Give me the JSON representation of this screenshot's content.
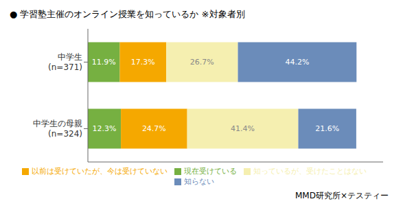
{
  "chart_data": {
    "type": "bar",
    "orientation": "horizontal",
    "stacked": true,
    "title": "● 学習塾主催のオンライン授業を知っているか ※対象者別",
    "categories": [
      "中学生\n(n=371)",
      "中学生の母親\n(n=324)"
    ],
    "series": [
      {
        "name": "現在受けている",
        "color": "#76b041",
        "values": [
          11.9,
          12.3
        ],
        "value_labels": [
          "11.9%",
          "12.3%"
        ]
      },
      {
        "name": "以前は受けていたが、今は受けていない",
        "color": "#f5a800",
        "values": [
          17.3,
          24.7
        ],
        "value_labels": [
          "17.3%",
          "24.7%"
        ]
      },
      {
        "name": "知っているが、受けたことはない",
        "color": "#f5efb0",
        "values": [
          26.7,
          41.4
        ],
        "value_labels": [
          "26.7%",
          "41.4%"
        ]
      },
      {
        "name": "知らない",
        "color": "#6b8cba",
        "values": [
          44.2,
          21.6
        ],
        "value_labels": [
          "44.2%",
          "21.6%"
        ]
      }
    ],
    "xlim": [
      0,
      110
    ],
    "data_labels": true,
    "tick_labels": "y",
    "grid": false,
    "legend": "bottom",
    "annotations": [
      "MMD研究所×テスティー"
    ]
  }
}
